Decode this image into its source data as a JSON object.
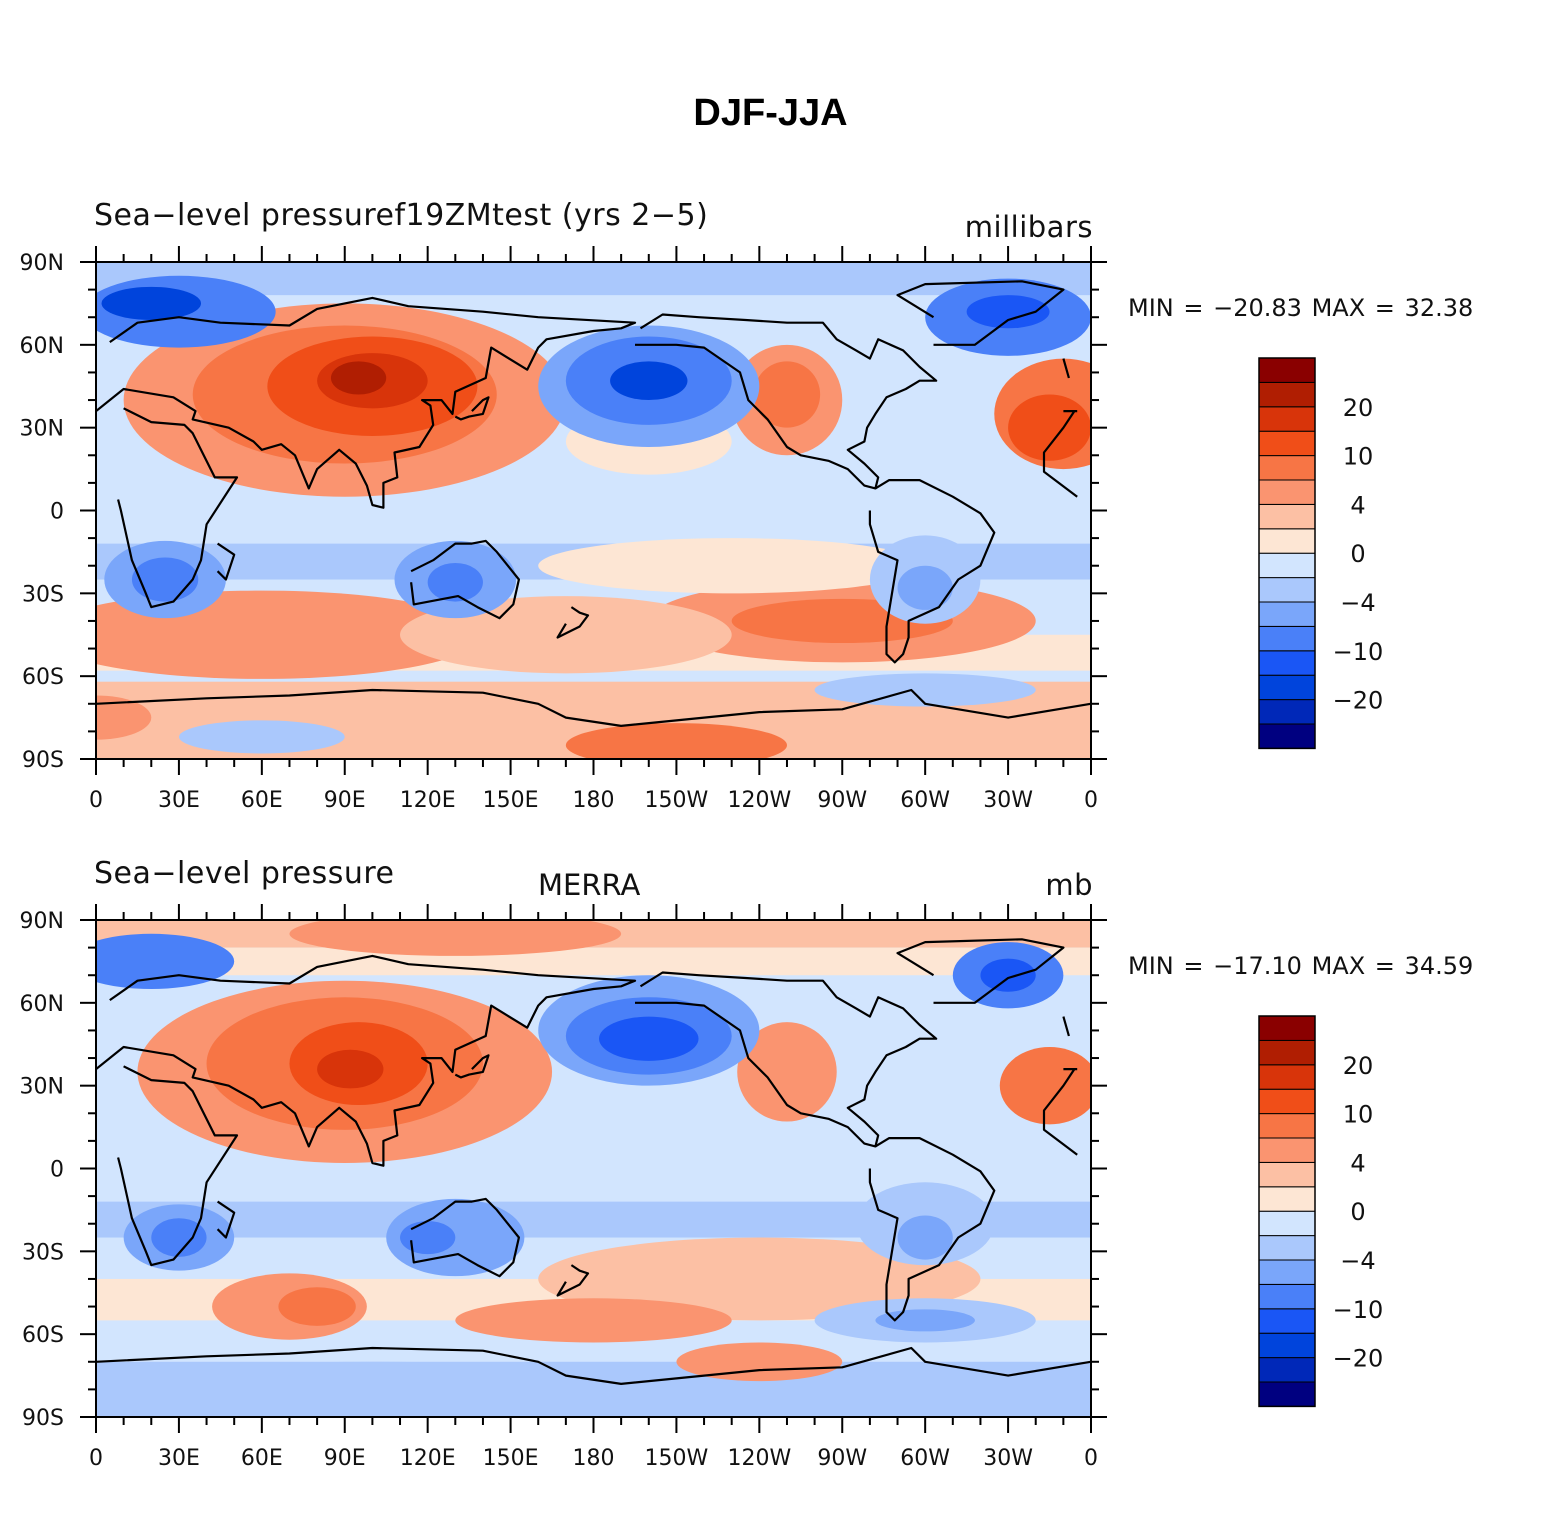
{
  "figure_title": "DJF-JJA",
  "colorbar_colors": [
    "#000080",
    "#0028b8",
    "#0044dc",
    "#1a56f5",
    "#4a80f8",
    "#7aa6fa",
    "#aac8fc",
    "#d2e5fe",
    "#fde6d4",
    "#fcc0a4",
    "#fa9470",
    "#f77545",
    "#f04e18",
    "#d8340a",
    "#b01e02",
    "#8a0000"
  ],
  "colorbar_labels": [
    "20",
    "10",
    "4",
    "0",
    "−4",
    "−10",
    "−20"
  ],
  "x_tick_labels": [
    "0",
    "30E",
    "60E",
    "90E",
    "120E",
    "150E",
    "180",
    "150W",
    "120W",
    "90W",
    "60W",
    "30W",
    "0"
  ],
  "y_tick_labels": [
    "90N",
    "60N",
    "30N",
    "0",
    "30S",
    "60S",
    "90S"
  ],
  "panels": [
    {
      "left_title": "Sea−level pressuref19ZMtest (yrs 2−5)",
      "center_title": "",
      "units": "millibars",
      "min_label": "MIN =",
      "min_value": "−20.83",
      "max_label": "MAX =",
      "max_value": "32.38"
    },
    {
      "left_title": "Sea−level pressure",
      "center_title": "MERRA",
      "units": "mb",
      "min_label": "MIN =",
      "min_value": "−17.10",
      "max_label": "MAX =",
      "max_value": "34.59"
    }
  ]
}
